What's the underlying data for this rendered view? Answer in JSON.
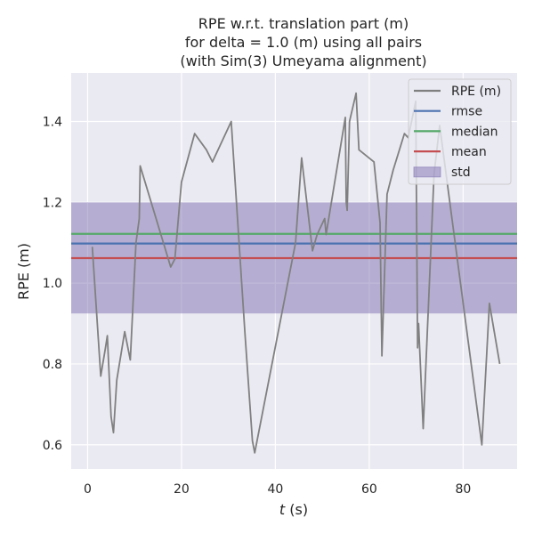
{
  "chart_data": {
    "type": "line",
    "title_lines": [
      "RPE w.r.t. translation part (m)",
      "for delta = 1.0 (m) using all pairs",
      "(with Sim(3) Umeyama alignment)"
    ],
    "xlabel_italic": "t",
    "xlabel_rest": " (s)",
    "ylabel": "RPE (m)",
    "xlim": [
      -3.5,
      91.5
    ],
    "ylim": [
      0.54,
      1.52
    ],
    "xticks": [
      0,
      20,
      40,
      60,
      80
    ],
    "yticks": [
      0.6,
      0.8,
      1.0,
      1.2,
      1.4
    ],
    "ytick_labels": [
      "0.6",
      "0.8",
      "1.0",
      "1.2",
      "1.4"
    ],
    "grid": true,
    "legend_position": "top-right",
    "series": [
      {
        "name": "RPE (m)",
        "color": "#808080",
        "x": [
          1.0,
          2.8,
          3.8,
          4.2,
          5.0,
          5.5,
          6.2,
          7.9,
          9.1,
          10.3,
          11.0,
          11.2,
          17.7,
          18.6,
          20.0,
          22.8,
          25.3,
          26.6,
          30.6,
          33.5,
          35.1,
          35.6,
          44.3,
          45.6,
          47.9,
          48.9,
          50.5,
          50.8,
          54.9,
          55.1,
          55.3,
          55.8,
          57.2,
          57.8,
          61.0,
          62.3,
          62.7,
          63.8,
          65.1,
          67.5,
          68.3,
          69.9,
          70.3,
          70.5,
          71.5,
          73.8,
          75.0,
          84.0,
          85.6,
          87.8
        ],
        "y": [
          1.09,
          0.77,
          0.84,
          0.87,
          0.67,
          0.63,
          0.76,
          0.88,
          0.81,
          1.1,
          1.16,
          1.29,
          1.04,
          1.06,
          1.25,
          1.37,
          1.33,
          1.3,
          1.4,
          0.88,
          0.61,
          0.58,
          1.1,
          1.31,
          1.08,
          1.12,
          1.16,
          1.12,
          1.41,
          1.2,
          1.18,
          1.4,
          1.47,
          1.33,
          1.3,
          1.15,
          0.82,
          1.22,
          1.28,
          1.37,
          1.36,
          1.45,
          0.84,
          0.9,
          0.64,
          1.27,
          1.39,
          0.6,
          0.95,
          0.8
        ]
      }
    ],
    "statistics": [
      {
        "name": "rmse",
        "value": 1.098,
        "color": "#4c72b0"
      },
      {
        "name": "median",
        "value": 1.122,
        "color": "#55a868"
      },
      {
        "name": "mean",
        "value": 1.062,
        "color": "#c44e52"
      }
    ],
    "std_band": {
      "name": "std",
      "low": 0.925,
      "high": 1.2,
      "color": "#8172b2"
    }
  }
}
